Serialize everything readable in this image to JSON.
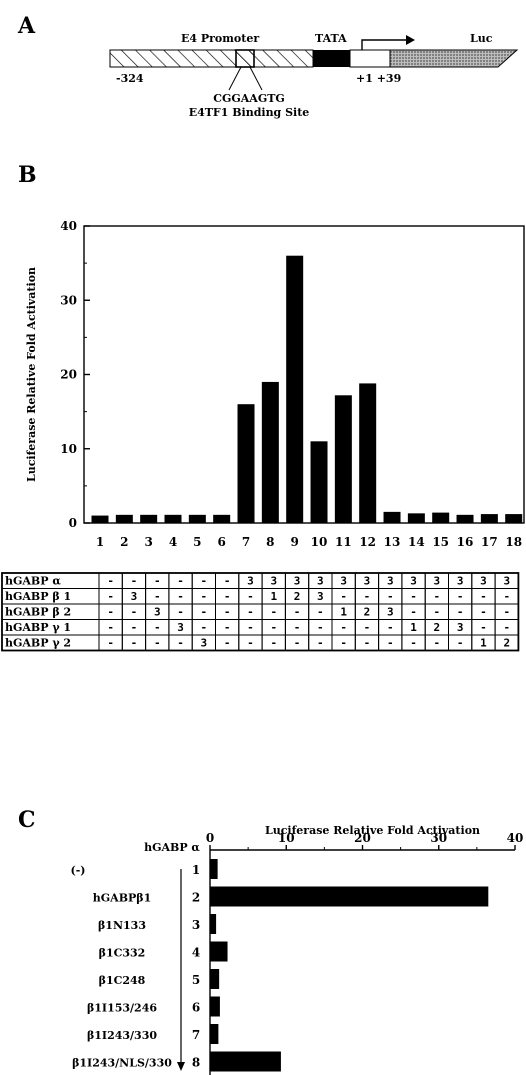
{
  "panels": {
    "a": "A",
    "b": "B",
    "c": "C"
  },
  "promoter": {
    "promoter_label": "E4 Promoter",
    "tata_label": "TATA",
    "luc_label": "Luc",
    "start_label": "-324",
    "tss_label": "+1 +39",
    "site_seq": "CGGAAGTG",
    "site_label": "E4TF1 Binding Site"
  },
  "chart_data": [
    {
      "type": "bar",
      "ylabel": "Luciferase Relative Fold Activation",
      "xlabel": "",
      "title": "",
      "ylim": [
        0,
        40
      ],
      "yticks": [
        0,
        10,
        20,
        30,
        40
      ],
      "categories": [
        "1",
        "2",
        "3",
        "4",
        "5",
        "6",
        "7",
        "8",
        "9",
        "10",
        "11",
        "12",
        "13",
        "14",
        "15",
        "16",
        "17",
        "18"
      ],
      "values": [
        1,
        1.1,
        1.1,
        1.1,
        1.1,
        1.1,
        16,
        19,
        36,
        11,
        17.2,
        18.8,
        1.5,
        1.3,
        1.4,
        1.1,
        1.2,
        1.2
      ],
      "grid": false,
      "legend": "none"
    },
    {
      "type": "bar",
      "orientation": "horizontal",
      "title": "Luciferase Relative Fold Activation",
      "group_label": "hGABP α",
      "xlim": [
        0,
        40
      ],
      "xticks": [
        0,
        10,
        20,
        30,
        40
      ],
      "categories": [
        "(-)",
        "hGABPβ1",
        "β1N133",
        "β1C332",
        "β1C248",
        "β1I153/246",
        "β1I243/330",
        "β1I243/NLS/330"
      ],
      "lanes": [
        "1",
        "2",
        "3",
        "4",
        "5",
        "6",
        "7",
        "8"
      ],
      "values": [
        1,
        36.5,
        0.8,
        2.3,
        1.2,
        1.3,
        1.1,
        9.3
      ],
      "grid": false,
      "legend": "none"
    }
  ],
  "table": {
    "rows": [
      {
        "label": "hGABP α",
        "cells": [
          "-",
          "-",
          "-",
          "-",
          "-",
          "-",
          "3",
          "3",
          "3",
          "3",
          "3",
          "3",
          "3",
          "3",
          "3",
          "3",
          "3",
          "3"
        ]
      },
      {
        "label": "hGABP β 1",
        "cells": [
          "-",
          "3",
          "-",
          "-",
          "-",
          "-",
          "-",
          "1",
          "2",
          "3",
          "-",
          "-",
          "-",
          "-",
          "-",
          "-",
          "-",
          "-"
        ]
      },
      {
        "label": "hGABP β 2",
        "cells": [
          "-",
          "-",
          "3",
          "-",
          "-",
          "-",
          "-",
          "-",
          "-",
          "-",
          "1",
          "2",
          "3",
          "-",
          "-",
          "-",
          "-",
          "-"
        ]
      },
      {
        "label": "hGABP γ 1",
        "cells": [
          "-",
          "-",
          "-",
          "3",
          "-",
          "-",
          "-",
          "-",
          "-",
          "-",
          "-",
          "-",
          "-",
          "1",
          "2",
          "3",
          "-",
          "-"
        ]
      },
      {
        "label": "hGABP γ 2",
        "cells": [
          "-",
          "-",
          "-",
          "-",
          "3",
          "-",
          "-",
          "-",
          "-",
          "-",
          "-",
          "-",
          "-",
          "-",
          "-",
          "-",
          "1",
          "2"
        ]
      }
    ]
  }
}
